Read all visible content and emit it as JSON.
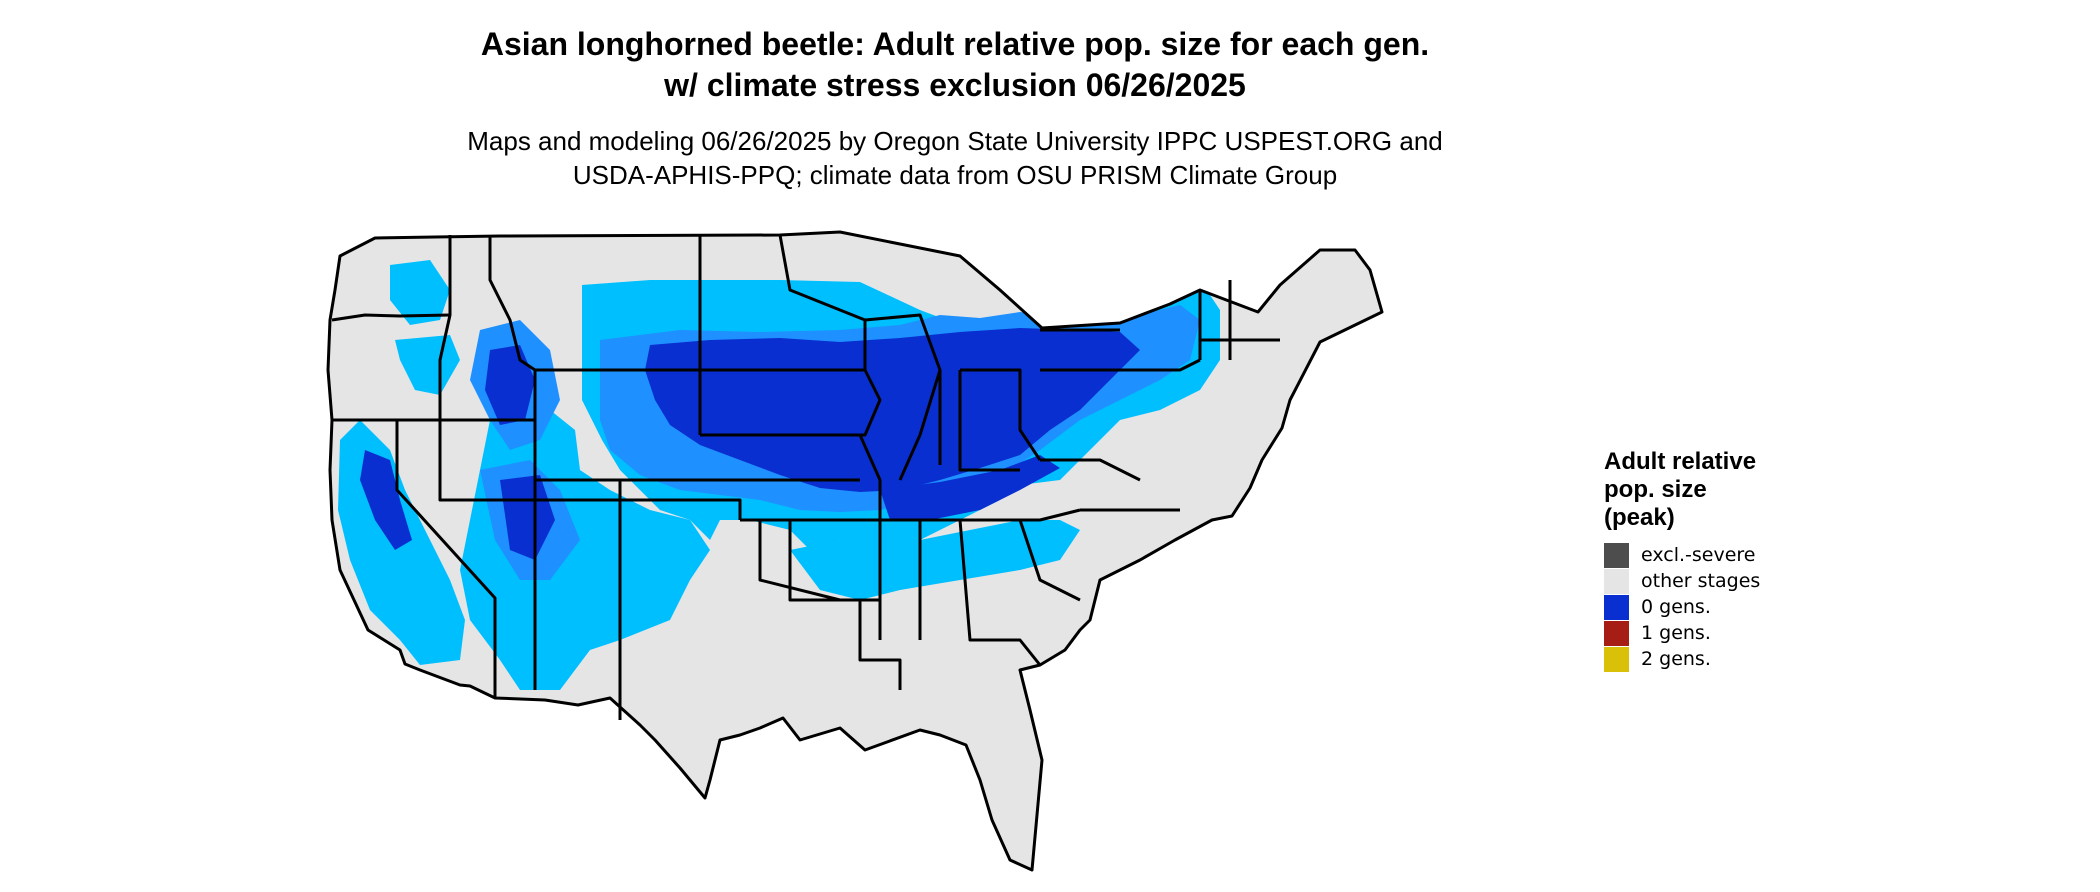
{
  "title_line1": "Asian longhorned beetle: Adult relative pop. size for each gen.",
  "title_line2": "w/ climate stress exclusion 06/26/2025",
  "subtitle_line1": "Maps and modeling 06/26/2025 by Oregon State University IPPC USPEST.ORG and",
  "subtitle_line2": "USDA-APHIS-PPQ; climate data from OSU PRISM Climate Group",
  "legend": {
    "title_line1": "Adult relative",
    "title_line2": "pop. size",
    "title_line3": "(peak)",
    "items": [
      {
        "label": "excl.-severe",
        "color": "#4d4d4d"
      },
      {
        "label": "other stages",
        "color": "#e5e5e5"
      },
      {
        "label": "0 gens.",
        "color": "#0a2fd1"
      },
      {
        "label": "1 gens.",
        "color": "#a51d14"
      },
      {
        "label": "2 gens.",
        "color": "#d9c10a"
      }
    ]
  },
  "map_colors": {
    "land": "#e5e5e5",
    "light_blue": "#00bfff",
    "mid_blue": "#1e90ff",
    "dark_blue": "#0a2fd1",
    "border": "#000000"
  }
}
